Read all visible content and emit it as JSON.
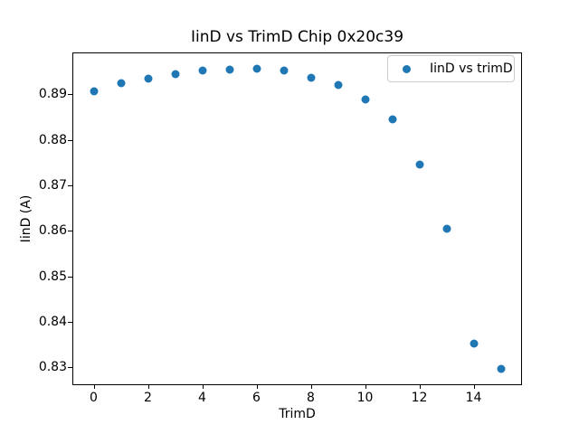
{
  "figure": {
    "background": "#ffffff",
    "spine_color": "#000000",
    "text_color": "#000000"
  },
  "chart_data": {
    "type": "scatter",
    "title": "IinD vs TrimD Chip 0x20c39",
    "xlabel": "TrimD",
    "ylabel": "IinD (A)",
    "legend": [
      "IinD vs trimD"
    ],
    "legend_position": "upper right",
    "marker_color": "#1f77b4",
    "grid": false,
    "x": [
      0,
      1,
      2,
      3,
      4,
      5,
      6,
      7,
      8,
      9,
      10,
      11,
      12,
      13,
      14,
      15
    ],
    "y": [
      0.8907,
      0.8924,
      0.8934,
      0.8945,
      0.8952,
      0.8955,
      0.8957,
      0.8952,
      0.8937,
      0.8921,
      0.8889,
      0.8845,
      0.8746,
      0.8605,
      0.8353,
      0.8296
    ],
    "xlim": [
      -0.75,
      15.75
    ],
    "ylim": [
      0.8263,
      0.899
    ],
    "xticks": [
      0,
      2,
      4,
      6,
      8,
      10,
      12,
      14
    ],
    "yticks": [
      0.83,
      0.84,
      0.85,
      0.86,
      0.87,
      0.88,
      0.89
    ]
  }
}
